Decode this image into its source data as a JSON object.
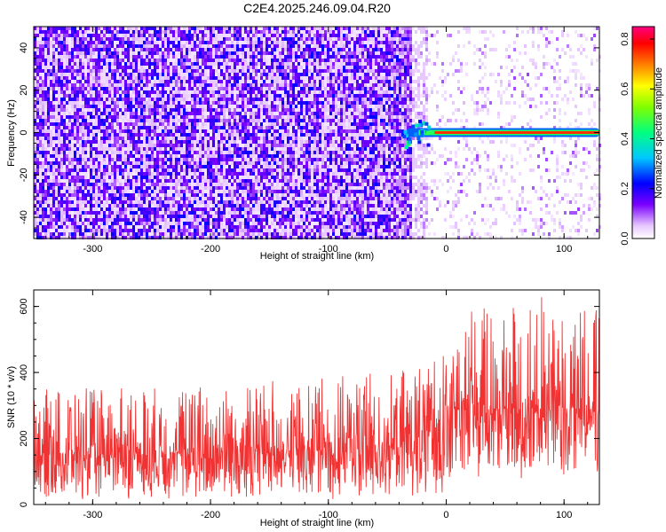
{
  "title": "C2E4.2025.246.09.04.R20",
  "chart_data": [
    {
      "type": "heatmap",
      "name": "spectrogram",
      "xlabel": "Height of straight line (km)",
      "ylabel": "Frequency (Hz)",
      "xlim": [
        -350,
        130
      ],
      "ylim": [
        -50,
        50
      ],
      "xticks": [
        -300,
        -200,
        -100,
        0,
        100
      ],
      "xtick_labels": [
        "-300",
        "-200",
        "-100",
        "0",
        "100"
      ],
      "yticks": [
        -40,
        -20,
        0,
        20,
        40
      ],
      "ytick_labels": [
        "-40",
        "-20",
        "0",
        "20",
        "40"
      ],
      "colorbar": {
        "label": "Normalized spectral amplitude",
        "range": [
          0,
          0.85
        ],
        "ticks": [
          0.0,
          0.2,
          0.4,
          0.6,
          0.8
        ],
        "tick_labels": [
          "0.0",
          "0.2",
          "0.4",
          "0.6",
          "0.8"
        ]
      },
      "noise_region": {
        "x_range": [
          -350,
          -30
        ],
        "amplitude": 0.15
      },
      "faint_region": {
        "x_range": [
          -30,
          130
        ],
        "amplitude": 0.05
      },
      "signal_band": {
        "x_range": [
          -40,
          130
        ],
        "frequency_hz": 0,
        "peak_amplitude": 0.85
      }
    },
    {
      "type": "line",
      "name": "snr",
      "color": "#f03232",
      "xlabel": "Height of straight line (km)",
      "ylabel": "SNR (10 * v/v)",
      "xlim": [
        -350,
        130
      ],
      "ylim": [
        0,
        650
      ],
      "xticks": [
        -300,
        -200,
        -100,
        0,
        100
      ],
      "xtick_labels": [
        "-300",
        "-200",
        "-100",
        "0",
        "100"
      ],
      "yticks": [
        0,
        200,
        400,
        600
      ],
      "ytick_labels": [
        "0",
        "200",
        "400",
        "600"
      ],
      "envelope": {
        "x": [
          -350,
          -250,
          -150,
          -50,
          -20,
          0,
          20,
          40,
          100,
          130
        ],
        "lower": [
          15,
          15,
          15,
          15,
          20,
          40,
          70,
          70,
          70,
          70
        ],
        "median": [
          150,
          155,
          160,
          170,
          200,
          270,
          300,
          290,
          285,
          280
        ],
        "upper": [
          350,
          360,
          375,
          400,
          430,
          500,
          600,
          620,
          640,
          600
        ]
      }
    }
  ]
}
